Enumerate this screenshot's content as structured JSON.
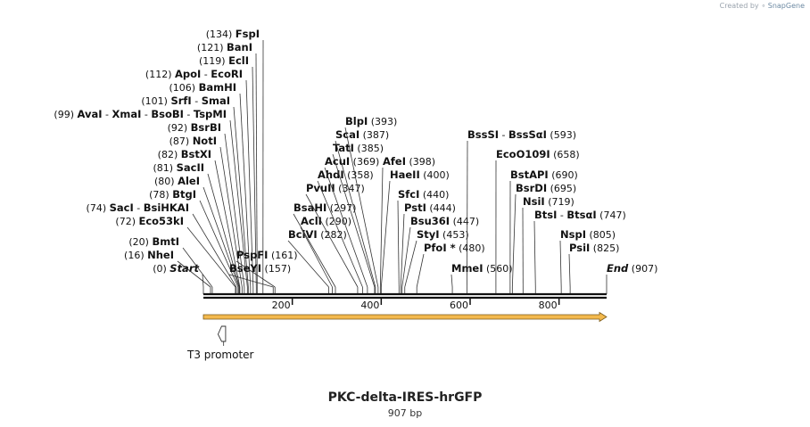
{
  "credit": {
    "prefix": "Created by",
    "brand": "SnapGene"
  },
  "title": "PKC-delta-IRES-hrGFP",
  "length_label": "907 bp",
  "sequence_length": 907,
  "axis": {
    "ticks": [
      200,
      400,
      600,
      800
    ]
  },
  "colors": {
    "backbone": "#111111",
    "orf_fill": "#f3b94d",
    "orf_outline": "#7a5a1a",
    "leader": "#333333"
  },
  "features": [
    {
      "name": "T3 promoter",
      "start": 37,
      "end": 54,
      "strand": "-",
      "type": "promoter"
    },
    {
      "name": "ORF",
      "start": 1,
      "end": 907,
      "strand": "+",
      "type": "orf"
    }
  ],
  "sites": [
    {
      "pos": "(0)",
      "names": [
        "Start"
      ],
      "bp": 0,
      "special": true
    },
    {
      "pos": "(16)",
      "names": [
        "NheI"
      ],
      "bp": 16
    },
    {
      "pos": "(20)",
      "names": [
        "BmtI"
      ],
      "bp": 20
    },
    {
      "pos": "(72)",
      "names": [
        "Eco53kI"
      ],
      "bp": 72
    },
    {
      "pos": "(74)",
      "names": [
        "SacI",
        "BsiHKAI"
      ],
      "bp": 74
    },
    {
      "pos": "(78)",
      "names": [
        "BtgI"
      ],
      "bp": 78
    },
    {
      "pos": "(80)",
      "names": [
        "AleI"
      ],
      "bp": 80
    },
    {
      "pos": "(81)",
      "names": [
        "SacII"
      ],
      "bp": 81
    },
    {
      "pos": "(82)",
      "names": [
        "BstXI"
      ],
      "bp": 82
    },
    {
      "pos": "(87)",
      "names": [
        "NotI"
      ],
      "bp": 87
    },
    {
      "pos": "(92)",
      "names": [
        "BsrBI"
      ],
      "bp": 92
    },
    {
      "pos": "(99)",
      "names": [
        "AvaI",
        "XmaI",
        "BsoBI",
        "TspMI"
      ],
      "bp": 99
    },
    {
      "pos": "(101)",
      "names": [
        "SrfI",
        "SmaI"
      ],
      "bp": 101
    },
    {
      "pos": "(106)",
      "names": [
        "BamHI"
      ],
      "bp": 106
    },
    {
      "pos": "(112)",
      "names": [
        "ApoI",
        "EcoRI"
      ],
      "bp": 112
    },
    {
      "pos": "(119)",
      "names": [
        "EclI"
      ],
      "bp": 119
    },
    {
      "pos": "(121)",
      "names": [
        "BanI"
      ],
      "bp": 121
    },
    {
      "pos": "(134)",
      "names": [
        "FspI"
      ],
      "bp": 134
    },
    {
      "pos": "(157)",
      "names": [
        "BseYI"
      ],
      "bp": 157
    },
    {
      "pos": "(161)",
      "names": [
        "PspFI"
      ],
      "bp": 161
    },
    {
      "pos": "(282)",
      "names": [
        "BciVI"
      ],
      "bp": 282
    },
    {
      "pos": "(290)",
      "names": [
        "AclI"
      ],
      "bp": 290
    },
    {
      "pos": "(297)",
      "names": [
        "BsaHI"
      ],
      "bp": 297
    },
    {
      "pos": "(347)",
      "names": [
        "PvuII"
      ],
      "bp": 347
    },
    {
      "pos": "(358)",
      "names": [
        "AhdI"
      ],
      "bp": 358
    },
    {
      "pos": "(369)",
      "names": [
        "AcuI"
      ],
      "bp": 369
    },
    {
      "pos": "(385)",
      "names": [
        "TatI"
      ],
      "bp": 385
    },
    {
      "pos": "(387)",
      "names": [
        "ScaI"
      ],
      "bp": 387
    },
    {
      "pos": "(393)",
      "names": [
        "BlpI"
      ],
      "bp": 393
    },
    {
      "pos": "(398)",
      "names": [
        "AfeI"
      ],
      "bp": 398
    },
    {
      "pos": "(400)",
      "names": [
        "HaeII"
      ],
      "bp": 400
    },
    {
      "pos": "(440)",
      "names": [
        "SfcI"
      ],
      "bp": 440
    },
    {
      "pos": "(444)",
      "names": [
        "PstI"
      ],
      "bp": 444
    },
    {
      "pos": "(447)",
      "names": [
        "Bsu36I"
      ],
      "bp": 447
    },
    {
      "pos": "(453)",
      "names": [
        "StyI"
      ],
      "bp": 453
    },
    {
      "pos": "(480)",
      "names": [
        "PfoI *"
      ],
      "bp": 480
    },
    {
      "pos": "(560)",
      "names": [
        "MmeI"
      ],
      "bp": 560
    },
    {
      "pos": "(593)",
      "names": [
        "BssSI",
        "BssSαI"
      ],
      "bp": 593
    },
    {
      "pos": "(658)",
      "names": [
        "EcoO109I"
      ],
      "bp": 658
    },
    {
      "pos": "(690)",
      "names": [
        "BstAPI"
      ],
      "bp": 690
    },
    {
      "pos": "(695)",
      "names": [
        "BsrDI"
      ],
      "bp": 695
    },
    {
      "pos": "(719)",
      "names": [
        "NsiI"
      ],
      "bp": 719
    },
    {
      "pos": "(747)",
      "names": [
        "BtsI",
        "BtsαI"
      ],
      "bp": 747
    },
    {
      "pos": "(805)",
      "names": [
        "NspI"
      ],
      "bp": 805
    },
    {
      "pos": "(825)",
      "names": [
        "PsiI"
      ],
      "bp": 825
    },
    {
      "pos": "(907)",
      "names": [
        "End"
      ],
      "bp": 907,
      "special": true
    }
  ]
}
